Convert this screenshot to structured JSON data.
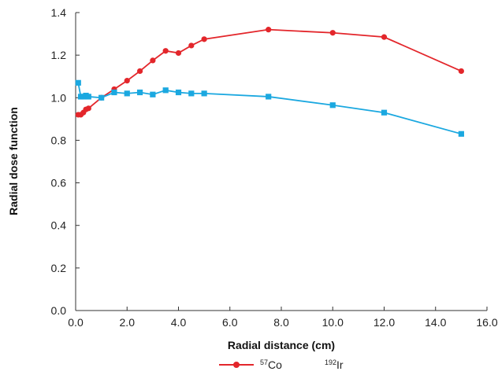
{
  "chart_data": {
    "type": "line",
    "xlabel": "Radial distance (cm)",
    "ylabel": "Radial dose function",
    "xlim": [
      0,
      16
    ],
    "ylim": [
      0,
      1.4
    ],
    "x_ticks": [
      "0.0",
      "2.0",
      "4.0",
      "6.0",
      "8.0",
      "10.0",
      "12.0",
      "14.0",
      "16.0"
    ],
    "y_ticks": [
      "0.0",
      "0.2",
      "0.4",
      "0.6",
      "0.8",
      "1.0",
      "1.2",
      "1.4"
    ],
    "grid": false,
    "legend_position": "bottom",
    "series": [
      {
        "name": "57Co",
        "legend_sup": "57",
        "legend_base": "Co",
        "color": "#e3262b",
        "marker": "circle",
        "x": [
          0.1,
          0.2,
          0.3,
          0.4,
          0.5,
          1.0,
          1.5,
          2.0,
          2.5,
          3.0,
          3.5,
          4.0,
          4.5,
          5.0,
          7.5,
          10.0,
          12.0,
          15.0
        ],
        "y": [
          0.92,
          0.92,
          0.93,
          0.945,
          0.95,
          1.0,
          1.04,
          1.08,
          1.125,
          1.175,
          1.22,
          1.21,
          1.245,
          1.275,
          1.32,
          1.305,
          1.285,
          1.125
        ]
      },
      {
        "name": "192Ir",
        "legend_sup": "192",
        "legend_base": "Ir",
        "color": "#1ba8e0",
        "marker": "square",
        "x": [
          0.1,
          0.2,
          0.3,
          0.4,
          0.5,
          1.0,
          1.5,
          2.0,
          2.5,
          3.0,
          3.5,
          4.0,
          4.5,
          5.0,
          7.5,
          10.0,
          12.0,
          15.0
        ],
        "y": [
          1.07,
          1.005,
          1.005,
          1.01,
          1.005,
          1.0,
          1.025,
          1.02,
          1.025,
          1.015,
          1.035,
          1.025,
          1.02,
          1.02,
          1.005,
          0.965,
          0.93,
          0.83
        ]
      }
    ]
  }
}
